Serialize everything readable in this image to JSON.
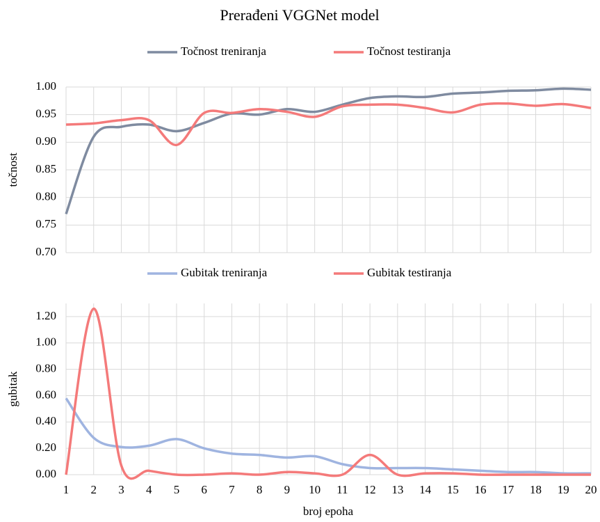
{
  "chart_data": [
    {
      "type": "line",
      "title": "Prerađeni VGGNet model",
      "y_label": "točnost",
      "ylim": [
        0.7,
        1.0
      ],
      "yticks": [
        {
          "value": 0.7,
          "label": "0.70"
        },
        {
          "value": 0.75,
          "label": "0.75"
        },
        {
          "value": 0.8,
          "label": "0.80"
        },
        {
          "value": 0.85,
          "label": "0.85"
        },
        {
          "value": 0.9,
          "label": "0.90"
        },
        {
          "value": 0.95,
          "label": "0.95"
        },
        {
          "value": 1.0,
          "label": "1.00"
        }
      ],
      "grid": true,
      "series": [
        {
          "name": "Točnost treniranja",
          "color": "#7f8ba0",
          "values": [
            0.77,
            0.91,
            0.928,
            0.932,
            0.92,
            0.935,
            0.952,
            0.95,
            0.96,
            0.955,
            0.968,
            0.98,
            0.983,
            0.982,
            0.988,
            0.99,
            0.993,
            0.994,
            0.997,
            0.995
          ]
        },
        {
          "name": "Točnost testiranja",
          "color": "#f47a7a",
          "values": [
            0.932,
            0.934,
            0.94,
            0.94,
            0.895,
            0.953,
            0.953,
            0.96,
            0.955,
            0.946,
            0.965,
            0.968,
            0.968,
            0.962,
            0.954,
            0.968,
            0.97,
            0.966,
            0.969,
            0.962
          ]
        }
      ]
    },
    {
      "type": "line",
      "y_label": "gubitak",
      "x_label": "broj epoha",
      "x": [
        1,
        2,
        3,
        4,
        5,
        6,
        7,
        8,
        9,
        10,
        11,
        12,
        13,
        14,
        15,
        16,
        17,
        18,
        19,
        20
      ],
      "xlim": [
        1,
        20
      ],
      "xticks": [
        1,
        2,
        3,
        4,
        5,
        6,
        7,
        8,
        9,
        10,
        11,
        12,
        13,
        14,
        15,
        16,
        17,
        18,
        19,
        20
      ],
      "ylim": [
        0,
        1.3
      ],
      "yticks": [
        {
          "value": 0,
          "label": "0.00"
        },
        {
          "value": 0.2,
          "label": "0.20"
        },
        {
          "value": 0.4,
          "label": "0.40"
        },
        {
          "value": 0.6,
          "label": "0.60"
        },
        {
          "value": 0.8,
          "label": "0.80"
        },
        {
          "value": 1.0,
          "label": "1.00"
        },
        {
          "value": 1.2,
          "label": "1.20"
        }
      ],
      "grid": true,
      "series": [
        {
          "name": "Gubitak treniranja",
          "color": "#9fb4e0",
          "values": [
            0.58,
            0.28,
            0.21,
            0.22,
            0.27,
            0.2,
            0.16,
            0.15,
            0.13,
            0.14,
            0.08,
            0.05,
            0.05,
            0.05,
            0.04,
            0.03,
            0.02,
            0.02,
            0.01,
            0.01
          ]
        },
        {
          "name": "Gubitak testiranja",
          "color": "#f47a7a",
          "values": [
            0.0,
            1.26,
            0.07,
            0.03,
            0.0,
            0.0,
            0.01,
            0.0,
            0.02,
            0.01,
            0.0,
            0.15,
            0.0,
            0.01,
            0.01,
            0.0,
            0.0,
            0.0,
            0.0,
            0.0
          ]
        }
      ]
    }
  ]
}
